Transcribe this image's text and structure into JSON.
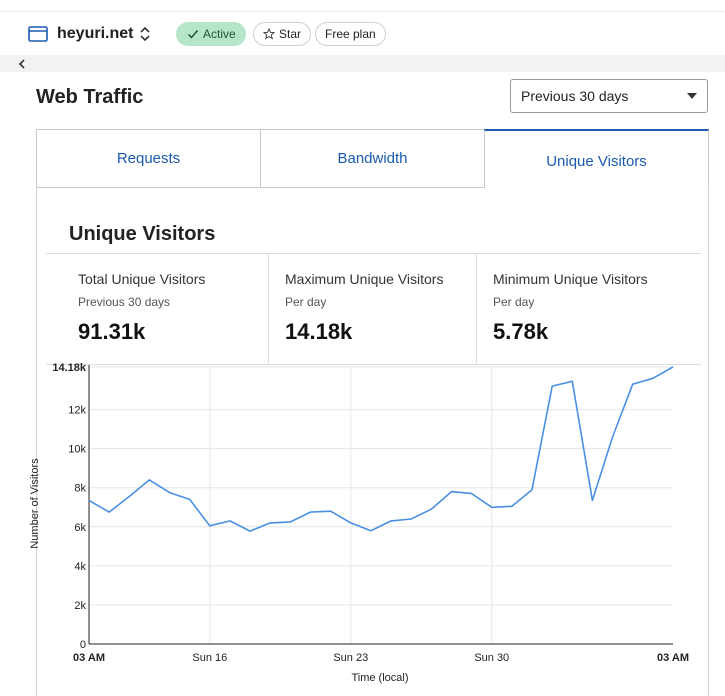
{
  "header": {
    "site_name": "heyuri.net",
    "status_badge": "Active",
    "star_label": "Star",
    "plan_label": "Free plan"
  },
  "page": {
    "title": "Web Traffic",
    "range_select": "Previous 30 days"
  },
  "tabs": [
    {
      "label": "Requests",
      "active": false
    },
    {
      "label": "Bandwidth",
      "active": false
    },
    {
      "label": "Unique Visitors",
      "active": true
    }
  ],
  "section": {
    "title": "Unique Visitors",
    "stats": [
      {
        "label": "Total Unique Visitors",
        "sub": "Previous 30 days",
        "value": "91.31k"
      },
      {
        "label": "Maximum Unique Visitors",
        "sub": "Per day",
        "value": "14.18k"
      },
      {
        "label": "Minimum Unique Visitors",
        "sub": "Per day",
        "value": "5.78k"
      }
    ]
  },
  "colors": {
    "accent": "#1a5bb0",
    "line": "#4a90e2",
    "badge_bg": "#b6e6c9"
  },
  "chart_data": {
    "type": "line",
    "xlabel": "Time (local)",
    "ylabel": "Number of Visitors",
    "ylim": [
      0,
      14180
    ],
    "y_ticks": [
      {
        "value": 0,
        "label": "0"
      },
      {
        "value": 2000,
        "label": "2k"
      },
      {
        "value": 4000,
        "label": "4k"
      },
      {
        "value": 6000,
        "label": "6k"
      },
      {
        "value": 8000,
        "label": "8k"
      },
      {
        "value": 10000,
        "label": "10k"
      },
      {
        "value": 12000,
        "label": "12k"
      },
      {
        "value": 14180,
        "label": "14.18k"
      }
    ],
    "x_ticks": [
      {
        "index": 0,
        "label": "03 AM"
      },
      {
        "index": 6,
        "label": "Sun 16"
      },
      {
        "index": 13,
        "label": "Sun 23"
      },
      {
        "index": 20,
        "label": "Sun 30"
      },
      {
        "index": 29,
        "label": "03 AM"
      }
    ],
    "grid": true,
    "series": [
      {
        "values": [
          7350,
          6750,
          7550,
          8400,
          7750,
          7400,
          6050,
          6300,
          5780,
          6200,
          6250,
          6750,
          6800,
          6200,
          5800,
          6300,
          6400,
          6900,
          7800,
          7700,
          7000,
          7050,
          7900,
          13200,
          13450,
          7350,
          10600,
          13300,
          13600,
          14180
        ]
      }
    ]
  }
}
